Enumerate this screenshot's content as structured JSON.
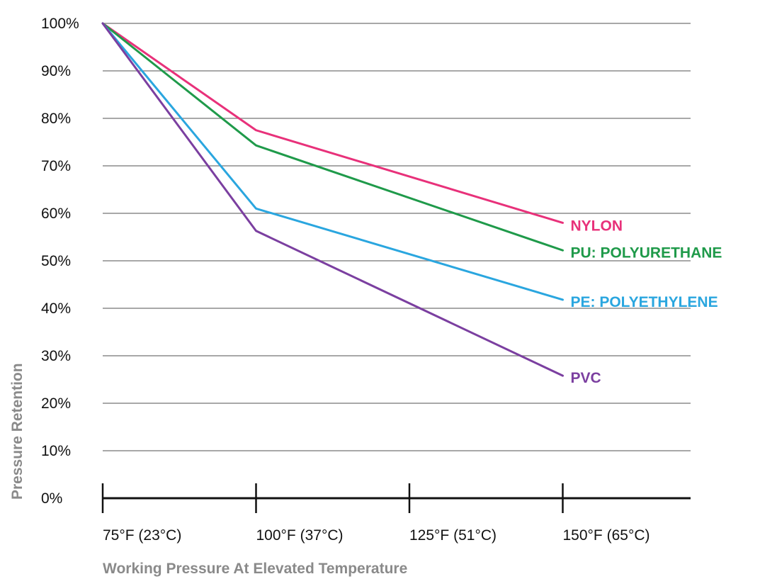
{
  "chart_data": {
    "type": "line",
    "title": "",
    "xlabel": "Working Pressure At Elevated Temperature",
    "ylabel": "Pressure Retention",
    "categories": [
      "75°F (23°C)",
      "100°F (37°C)",
      "125°F (51°C)",
      "150°F (65°C)"
    ],
    "y_ticks": [
      "0%",
      "10%",
      "20%",
      "30%",
      "40%",
      "50%",
      "60%",
      "70%",
      "80%",
      "90%",
      "100%"
    ],
    "ylim": [
      0,
      100
    ],
    "grid": true,
    "legend": "inline labels at line ends (right)",
    "series": [
      {
        "name": "NYLON",
        "color": "#e8317a",
        "points": [
          [
            75,
            100
          ],
          [
            100,
            77.5
          ],
          [
            150,
            58
          ]
        ]
      },
      {
        "name": "PU: POLYURETHANE",
        "color": "#1f9a4a",
        "points": [
          [
            75,
            100
          ],
          [
            100,
            74.3
          ],
          [
            150,
            52.2
          ]
        ]
      },
      {
        "name": "PE: POLYETHYLENE",
        "color": "#2aa6df",
        "points": [
          [
            75,
            100
          ],
          [
            100,
            61
          ],
          [
            150,
            41.8
          ]
        ]
      },
      {
        "name": "PVC",
        "color": "#7b3fa0",
        "points": [
          [
            75,
            100
          ],
          [
            100,
            56.3
          ],
          [
            150,
            25.8
          ]
        ]
      }
    ]
  }
}
